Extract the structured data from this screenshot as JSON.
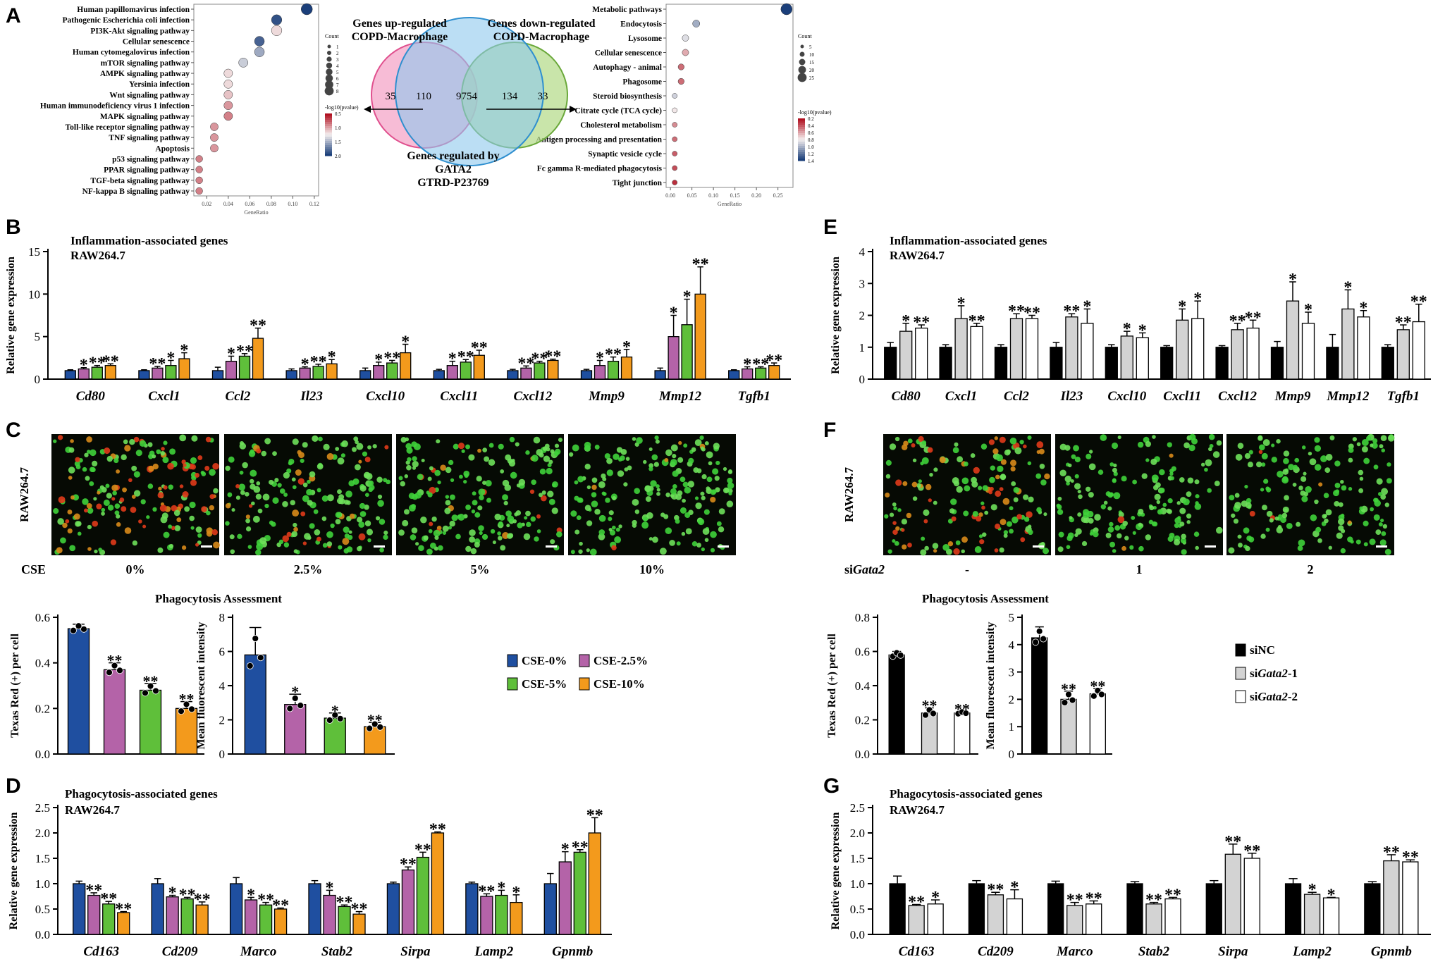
{
  "panel_letters": {
    "A": "A",
    "B": "B",
    "C": "C",
    "D": "D",
    "E": "E",
    "F": "F",
    "G": "G"
  },
  "colors": {
    "cse0": "#1f4fa0",
    "cse25": "#b463a8",
    "cse5": "#5fbf3a",
    "cse10": "#f39a1c",
    "siNC": "#000000",
    "si1": "#d3d3d3",
    "si2": "#ffffff"
  },
  "venn": {
    "up_title": "Genes up-regulated\nCOPD-Macrophage",
    "down_title": "Genes down-regulated\nCOPD-Macrophage",
    "bottom_title": "Genes regulated by\nGATA2\nGTRD-P23769",
    "n1": "35",
    "n2": "110",
    "n3": "9754",
    "n4": "134",
    "n5": "33"
  },
  "dot_left": {
    "terms": [
      "Human papillomavirus infection",
      "Pathogenic Escherichia coli infection",
      "PI3K-Akt signaling pathway",
      "Cellular senescence",
      "Human cytomegalovirus infection",
      "mTOR signaling pathway",
      "AMPK signaling pathway",
      "Yersinia infection",
      "Wnt signaling pathway",
      "Human immunodeficiency virus 1 infection",
      "MAPK signaling pathway",
      "Toll-like receptor signaling pathway",
      "TNF signaling pathway",
      "Apoptosis",
      "p53 signaling pathway",
      "PPAR signaling pathway",
      "TGF-beta signaling pathway",
      "NF-kappa B signaling pathway"
    ],
    "ratio": [
      0.113,
      0.085,
      0.085,
      0.069,
      0.069,
      0.054,
      0.04,
      0.04,
      0.04,
      0.04,
      0.04,
      0.027,
      0.027,
      0.027,
      0.013,
      0.013,
      0.013,
      0.013
    ],
    "count": [
      8,
      6,
      6,
      5,
      5,
      4,
      3,
      3,
      3,
      3,
      3,
      2,
      2,
      2,
      1,
      1,
      1,
      1
    ],
    "neglogp": [
      2.0,
      1.9,
      0.9,
      1.8,
      1.4,
      1.2,
      0.9,
      0.9,
      0.8,
      0.6,
      0.5,
      0.6,
      0.6,
      0.6,
      0.5,
      0.5,
      0.5,
      0.5
    ],
    "xticks": [
      "0.02",
      "0.04",
      "0.06",
      "0.08",
      "0.10",
      "0.12"
    ],
    "xlabel": "GeneRatio",
    "count_title": "Count",
    "count_vals": [
      "1",
      "2",
      "3",
      "4",
      "5",
      "6",
      "7",
      "8"
    ],
    "color_title": "-log10(pvalue)",
    "color_vals": [
      "0.5",
      "1.0",
      "1.5",
      "2.0"
    ]
  },
  "dot_right": {
    "terms": [
      "Metabolic pathways",
      "Endocytosis",
      "Lysosome",
      "Cellular senescence",
      "Autophagy - animal",
      "Phagosome",
      "Steroid biosynthesis",
      "Citrate cycle (TCA cycle)",
      "Cholesterol metabolism",
      "Antigen processing and presentation",
      "Synaptic vesicle cycle",
      "Fc gamma R-mediated phagocytosis",
      "Tight junction"
    ],
    "ratio": [
      0.27,
      0.06,
      0.035,
      0.035,
      0.025,
      0.025,
      0.01,
      0.01,
      0.01,
      0.01,
      0.01,
      0.01,
      0.01
    ],
    "count": [
      27,
      6,
      4,
      4,
      3,
      3,
      1,
      1,
      1,
      1,
      1,
      1,
      1
    ],
    "neglogp": [
      1.45,
      1.0,
      0.8,
      0.5,
      0.3,
      0.3,
      0.85,
      0.7,
      0.4,
      0.3,
      0.25,
      0.2,
      0.1
    ],
    "xticks": [
      "0.00",
      "0.05",
      "0.10",
      "0.15",
      "0.20",
      "0.25"
    ],
    "xlabel": "GeneRatio",
    "count_title": "Count",
    "count_vals": [
      "5",
      "10",
      "15",
      "20",
      "25"
    ],
    "color_title": "-log10(pvalue)",
    "color_vals": [
      "0.2",
      "0.4",
      "0.6",
      "0.8",
      "1.0",
      "1.2",
      "1.4"
    ]
  },
  "chart_data": [
    {
      "id": "B",
      "type": "bar",
      "title": "Inflammation-associated genes",
      "subtitle": "RAW264.7",
      "ylabel": "Relative gene expression",
      "ylim": [
        0,
        15
      ],
      "yticks": [
        0,
        5,
        10,
        15
      ],
      "categories": [
        "Cd80",
        "Cxcl1",
        "Ccl2",
        "Il23",
        "Cxcl10",
        "Cxcl11",
        "Cxcl12",
        "Mmp9",
        "Mmp12",
        "Tgfb1"
      ],
      "series": [
        {
          "name": "CSE-0%",
          "values": [
            1,
            1,
            1,
            1,
            1,
            1,
            1,
            1,
            1,
            1
          ],
          "err": [
            0.1,
            0.1,
            0.4,
            0.2,
            0.3,
            0.15,
            0.15,
            0.15,
            0.3,
            0.1
          ],
          "sig": [
            "",
            "",
            "",
            "",
            "",
            "",
            "",
            "",
            "",
            ""
          ]
        },
        {
          "name": "CSE-2.5%",
          "values": [
            1.2,
            1.3,
            2.1,
            1.3,
            1.6,
            1.6,
            1.3,
            1.6,
            5.0,
            1.2
          ],
          "err": [
            0.15,
            0.2,
            0.6,
            0.15,
            0.4,
            0.5,
            0.25,
            0.6,
            2.5,
            0.25
          ],
          "sig": [
            "*",
            "**",
            "*",
            "*",
            "*",
            "*",
            "**",
            "*",
            "*",
            "*"
          ]
        },
        {
          "name": "CSE-5%",
          "values": [
            1.4,
            1.6,
            2.7,
            1.5,
            1.9,
            2.0,
            1.9,
            2.1,
            6.4,
            1.3
          ],
          "err": [
            0.2,
            0.6,
            0.3,
            0.25,
            0.3,
            0.3,
            0.2,
            0.5,
            3.0,
            0.15
          ],
          "sig": [
            "**",
            "*",
            "**",
            "**",
            "**",
            "**",
            "**",
            "**",
            "*",
            "**"
          ]
        },
        {
          "name": "CSE-10%",
          "values": [
            1.6,
            2.4,
            4.8,
            1.8,
            3.1,
            2.8,
            2.2,
            2.6,
            10.0,
            1.6
          ],
          "err": [
            0.2,
            0.7,
            1.2,
            0.5,
            1.0,
            0.6,
            0.15,
            0.9,
            3.2,
            0.3
          ],
          "sig": [
            "**",
            "*",
            "**",
            "*",
            "*",
            "**",
            "**",
            "*",
            "**",
            "**"
          ]
        }
      ]
    },
    {
      "id": "E",
      "type": "bar",
      "title": "Inflammation-associated genes",
      "subtitle": "RAW264.7",
      "ylabel": "Relative gene expression",
      "ylim": [
        0,
        4
      ],
      "yticks": [
        0,
        1,
        2,
        3,
        4
      ],
      "categories": [
        "Cd80",
        "Cxcl1",
        "Ccl2",
        "Il23",
        "Cxcl10",
        "Cxcl11",
        "Cxcl12",
        "Mmp9",
        "Mmp12",
        "Tgfb1"
      ],
      "series": [
        {
          "name": "siNC",
          "values": [
            1,
            1,
            1,
            1,
            1,
            1,
            1,
            1,
            1,
            1
          ],
          "err": [
            0.15,
            0.08,
            0.08,
            0.15,
            0.08,
            0.05,
            0.05,
            0.18,
            0.4,
            0.08
          ],
          "sig": [
            "",
            "",
            "",
            "",
            "",
            "",
            "",
            "",
            "",
            ""
          ]
        },
        {
          "name": "siGata2-1",
          "values": [
            1.5,
            1.9,
            1.9,
            1.95,
            1.35,
            1.85,
            1.55,
            2.45,
            2.2,
            1.55
          ],
          "err": [
            0.25,
            0.4,
            0.15,
            0.1,
            0.15,
            0.35,
            0.2,
            0.6,
            0.6,
            0.15
          ],
          "sig": [
            "*",
            "*",
            "**",
            "**",
            "*",
            "*",
            "**",
            "*",
            "*",
            "**"
          ]
        },
        {
          "name": "siGata2-2",
          "values": [
            1.6,
            1.65,
            1.9,
            1.75,
            1.3,
            1.9,
            1.6,
            1.75,
            1.95,
            1.8
          ],
          "err": [
            0.1,
            0.1,
            0.1,
            0.45,
            0.15,
            0.55,
            0.25,
            0.35,
            0.2,
            0.55
          ],
          "sig": [
            "**",
            "**",
            "**",
            "*",
            "*",
            "*",
            "**",
            "*",
            "*",
            "**"
          ]
        }
      ]
    },
    {
      "id": "C_left",
      "type": "bar",
      "title": "Phagocytosis Assessment",
      "ylabel": "Texas Red (+) per cell",
      "ylim": [
        0,
        0.6
      ],
      "yticks": [
        "0.0",
        "0.2",
        "0.4",
        "0.6"
      ],
      "categories": [
        "CSE-0%",
        "CSE-2.5%",
        "CSE-5%",
        "CSE-10%"
      ],
      "values": [
        0.55,
        0.37,
        0.28,
        0.2
      ],
      "err": [
        0.02,
        0.03,
        0.03,
        0.03
      ],
      "sig": [
        "",
        "**",
        "**",
        "**"
      ]
    },
    {
      "id": "C_right",
      "type": "bar",
      "ylabel": "Mean fluorescent intensity",
      "ylim": [
        0,
        8
      ],
      "yticks": [
        0,
        2,
        4,
        6,
        8
      ],
      "categories": [
        "CSE-0%",
        "CSE-2.5%",
        "CSE-5%",
        "CSE-10%"
      ],
      "values": [
        5.8,
        2.9,
        2.1,
        1.6
      ],
      "err": [
        1.6,
        0.6,
        0.3,
        0.25
      ],
      "sig": [
        "",
        "*",
        "*",
        "**"
      ]
    },
    {
      "id": "F_left",
      "type": "bar",
      "title": "Phagocytosis Assessment",
      "ylabel": "Texas Red (+) per cell",
      "ylim": [
        0,
        0.8
      ],
      "yticks": [
        "0.0",
        "0.2",
        "0.4",
        "0.6",
        "0.8"
      ],
      "categories": [
        "siNC",
        "siGata2-1",
        "siGata2-2"
      ],
      "values": [
        0.58,
        0.24,
        0.24
      ],
      "err": [
        0.02,
        0.03,
        0.01
      ],
      "sig": [
        "",
        "**",
        "**"
      ]
    },
    {
      "id": "F_right",
      "type": "bar",
      "ylabel": "Mean fluorescent intensity",
      "ylim": [
        0,
        5
      ],
      "yticks": [
        0,
        1,
        2,
        3,
        4,
        5
      ],
      "categories": [
        "siNC",
        "siGata2-1",
        "siGata2-2"
      ],
      "values": [
        4.25,
        2.0,
        2.2
      ],
      "err": [
        0.4,
        0.3,
        0.2
      ],
      "sig": [
        "",
        "**",
        "**"
      ]
    },
    {
      "id": "D",
      "type": "bar",
      "title": "Phagocytosis-associated genes",
      "subtitle": "RAW264.7",
      "ylabel": "Relative gene expression",
      "ylim": [
        0,
        2.5
      ],
      "yticks": [
        "0.0",
        "0.5",
        "1.0",
        "1.5",
        "2.0",
        "2.5"
      ],
      "categories": [
        "Cd163",
        "Cd209",
        "Marco",
        "Stab2",
        "Sirpa",
        "Lamp2",
        "Gpnmb"
      ],
      "series": [
        {
          "name": "CSE-0%",
          "values": [
            1,
            1,
            1,
            1,
            1,
            1,
            1
          ],
          "err": [
            0.05,
            0.1,
            0.12,
            0.06,
            0.03,
            0.03,
            0.2
          ],
          "sig": [
            "",
            "",
            "",
            "",
            "",
            "",
            ""
          ]
        },
        {
          "name": "CSE-2.5%",
          "values": [
            0.77,
            0.74,
            0.68,
            0.77,
            1.27,
            0.75,
            1.43
          ],
          "err": [
            0.05,
            0.03,
            0.05,
            0.1,
            0.06,
            0.05,
            0.2
          ],
          "sig": [
            "**",
            "*",
            "*",
            "*",
            "**",
            "**",
            "*"
          ]
        },
        {
          "name": "CSE-5%",
          "values": [
            0.6,
            0.7,
            0.58,
            0.55,
            1.52,
            0.77,
            1.62
          ],
          "err": [
            0.05,
            0.03,
            0.05,
            0.03,
            0.1,
            0.1,
            0.05
          ],
          "sig": [
            "**",
            "**",
            "**",
            "**",
            "**",
            "*",
            "**"
          ]
        },
        {
          "name": "CSE-10%",
          "values": [
            0.43,
            0.58,
            0.5,
            0.4,
            2.0,
            0.63,
            2.0
          ],
          "err": [
            0.02,
            0.06,
            0.02,
            0.05,
            0.02,
            0.15,
            0.3
          ],
          "sig": [
            "**",
            "**",
            "**",
            "**",
            "**",
            "*",
            "**"
          ]
        }
      ]
    },
    {
      "id": "G",
      "type": "bar",
      "title": "Phagocytosis-associated genes",
      "subtitle": "RAW264.7",
      "ylabel": "Relative gene expression",
      "ylim": [
        0,
        2.5
      ],
      "yticks": [
        "0.0",
        "0.5",
        "1.0",
        "1.5",
        "2.0",
        "2.5"
      ],
      "categories": [
        "Cd163",
        "Cd209",
        "Marco",
        "Stab2",
        "Sirpa",
        "Lamp2",
        "Gpnmb"
      ],
      "series": [
        {
          "name": "siNC",
          "values": [
            1,
            1,
            1,
            1,
            1,
            1,
            1
          ],
          "err": [
            0.15,
            0.06,
            0.05,
            0.04,
            0.06,
            0.1,
            0.04
          ],
          "sig": [
            "",
            "",
            "",
            "",
            "",
            "",
            ""
          ]
        },
        {
          "name": "siGata2-1",
          "values": [
            0.57,
            0.78,
            0.57,
            0.6,
            1.58,
            0.79,
            1.45
          ],
          "err": [
            0.02,
            0.05,
            0.06,
            0.03,
            0.2,
            0.04,
            0.12
          ],
          "sig": [
            "**",
            "**",
            "**",
            "**",
            "**",
            "*",
            "**"
          ]
        },
        {
          "name": "siGata2-2",
          "values": [
            0.6,
            0.7,
            0.6,
            0.7,
            1.5,
            0.72,
            1.43
          ],
          "err": [
            0.08,
            0.18,
            0.06,
            0.03,
            0.1,
            0.01,
            0.04
          ],
          "sig": [
            "*",
            "*",
            "**",
            "**",
            "**",
            "*",
            "**"
          ]
        }
      ]
    }
  ],
  "micro_C": {
    "side_label": "RAW264.7",
    "axis_label": "CSE",
    "conds": [
      "0%",
      "2.5%",
      "5%",
      "10%"
    ]
  },
  "micro_F": {
    "side_label": "RAW264.7",
    "axis_label_pre": "si",
    "axis_label_it": "Gata2",
    "conds": [
      "-",
      "1",
      "2"
    ]
  },
  "legend_C": [
    {
      "label": "CSE-0%",
      "color": "#1f4fa0"
    },
    {
      "label": "CSE-2.5%",
      "color": "#b463a8"
    },
    {
      "label": "CSE-5%",
      "color": "#5fbf3a"
    },
    {
      "label": "CSE-10%",
      "color": "#f39a1c"
    }
  ],
  "legend_F": [
    {
      "pre": "siNC",
      "it": "",
      "post": "",
      "color": "#000000"
    },
    {
      "pre": "si",
      "it": "Gata2",
      "post": "-1",
      "color": "#d3d3d3"
    },
    {
      "pre": "si",
      "it": "Gata2",
      "post": "-2",
      "color": "#ffffff"
    }
  ]
}
